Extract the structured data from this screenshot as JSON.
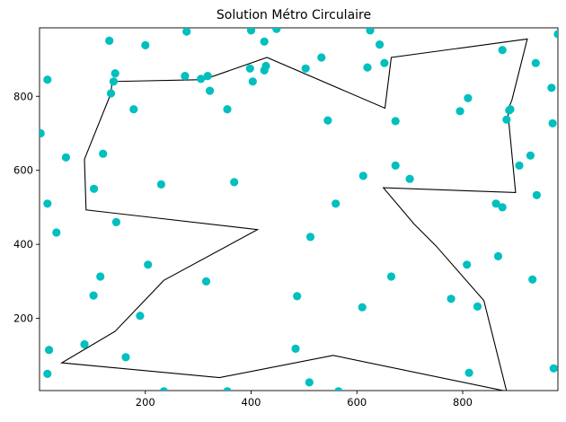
{
  "chart_data": {
    "type": "scatter",
    "title": "Solution Métro Circulaire",
    "xlabel": "",
    "ylabel": "",
    "xlim": [
      0,
      980
    ],
    "ylim": [
      5,
      985
    ],
    "xticks": [
      200,
      400,
      600,
      800
    ],
    "yticks": [
      200,
      400,
      600,
      800
    ],
    "grid": false,
    "point_color": "#00bfbf",
    "line_color": "#000000",
    "points": [
      [
        2,
        700
      ],
      [
        15,
        845
      ],
      [
        15,
        510
      ],
      [
        18,
        115
      ],
      [
        15,
        50
      ],
      [
        32,
        432
      ],
      [
        50,
        635
      ],
      [
        85,
        130
      ],
      [
        102,
        262
      ],
      [
        103,
        550
      ],
      [
        115,
        313
      ],
      [
        120,
        645
      ],
      [
        132,
        950
      ],
      [
        140,
        840
      ],
      [
        143,
        862
      ],
      [
        145,
        460
      ],
      [
        163,
        95
      ],
      [
        178,
        765
      ],
      [
        190,
        207
      ],
      [
        200,
        938
      ],
      [
        205,
        345
      ],
      [
        230,
        562
      ],
      [
        235,
        3
      ],
      [
        275,
        855
      ],
      [
        278,
        975
      ],
      [
        305,
        847
      ],
      [
        315,
        300
      ],
      [
        318,
        855
      ],
      [
        322,
        815
      ],
      [
        355,
        3
      ],
      [
        355,
        765
      ],
      [
        368,
        568
      ],
      [
        398,
        875
      ],
      [
        400,
        978
      ],
      [
        403,
        840
      ],
      [
        425,
        948
      ],
      [
        425,
        870
      ],
      [
        428,
        882
      ],
      [
        448,
        982
      ],
      [
        484,
        118
      ],
      [
        487,
        260
      ],
      [
        503,
        875
      ],
      [
        510,
        27
      ],
      [
        512,
        420
      ],
      [
        533,
        905
      ],
      [
        545,
        735
      ],
      [
        560,
        510
      ],
      [
        565,
        3
      ],
      [
        610,
        230
      ],
      [
        612,
        585
      ],
      [
        620,
        878
      ],
      [
        625,
        978
      ],
      [
        643,
        940
      ],
      [
        665,
        313
      ],
      [
        673,
        733
      ],
      [
        673,
        613
      ],
      [
        700,
        577
      ],
      [
        778,
        253
      ],
      [
        795,
        760
      ],
      [
        808,
        345
      ],
      [
        810,
        795
      ],
      [
        812,
        53
      ],
      [
        828,
        232
      ],
      [
        863,
        510
      ],
      [
        867,
        368
      ],
      [
        875,
        925
      ],
      [
        875,
        500
      ],
      [
        883,
        737
      ],
      [
        890,
        765
      ],
      [
        907,
        613
      ],
      [
        928,
        640
      ],
      [
        932,
        305
      ],
      [
        938,
        890
      ],
      [
        940,
        533
      ],
      [
        968,
        823
      ],
      [
        970,
        727
      ],
      [
        972,
        65
      ],
      [
        980,
        968
      ],
      [
        135,
        808
      ],
      [
        652,
        890
      ],
      [
        888,
        762
      ]
    ],
    "route": [
      [
        137,
        840
      ],
      [
        310,
        845
      ],
      [
        430,
        905
      ],
      [
        653,
        768
      ],
      [
        665,
        905
      ],
      [
        922,
        955
      ],
      [
        893,
        790
      ],
      [
        885,
        762
      ],
      [
        900,
        540
      ],
      [
        650,
        553
      ],
      [
        708,
        455
      ],
      [
        750,
        395
      ],
      [
        840,
        248
      ],
      [
        883,
        3
      ],
      [
        555,
        100
      ],
      [
        340,
        40
      ],
      [
        42,
        80
      ],
      [
        143,
        165
      ],
      [
        235,
        303
      ],
      [
        412,
        440
      ],
      [
        88,
        493
      ],
      [
        85,
        630
      ],
      [
        135,
        808
      ],
      [
        137,
        840
      ]
    ]
  }
}
